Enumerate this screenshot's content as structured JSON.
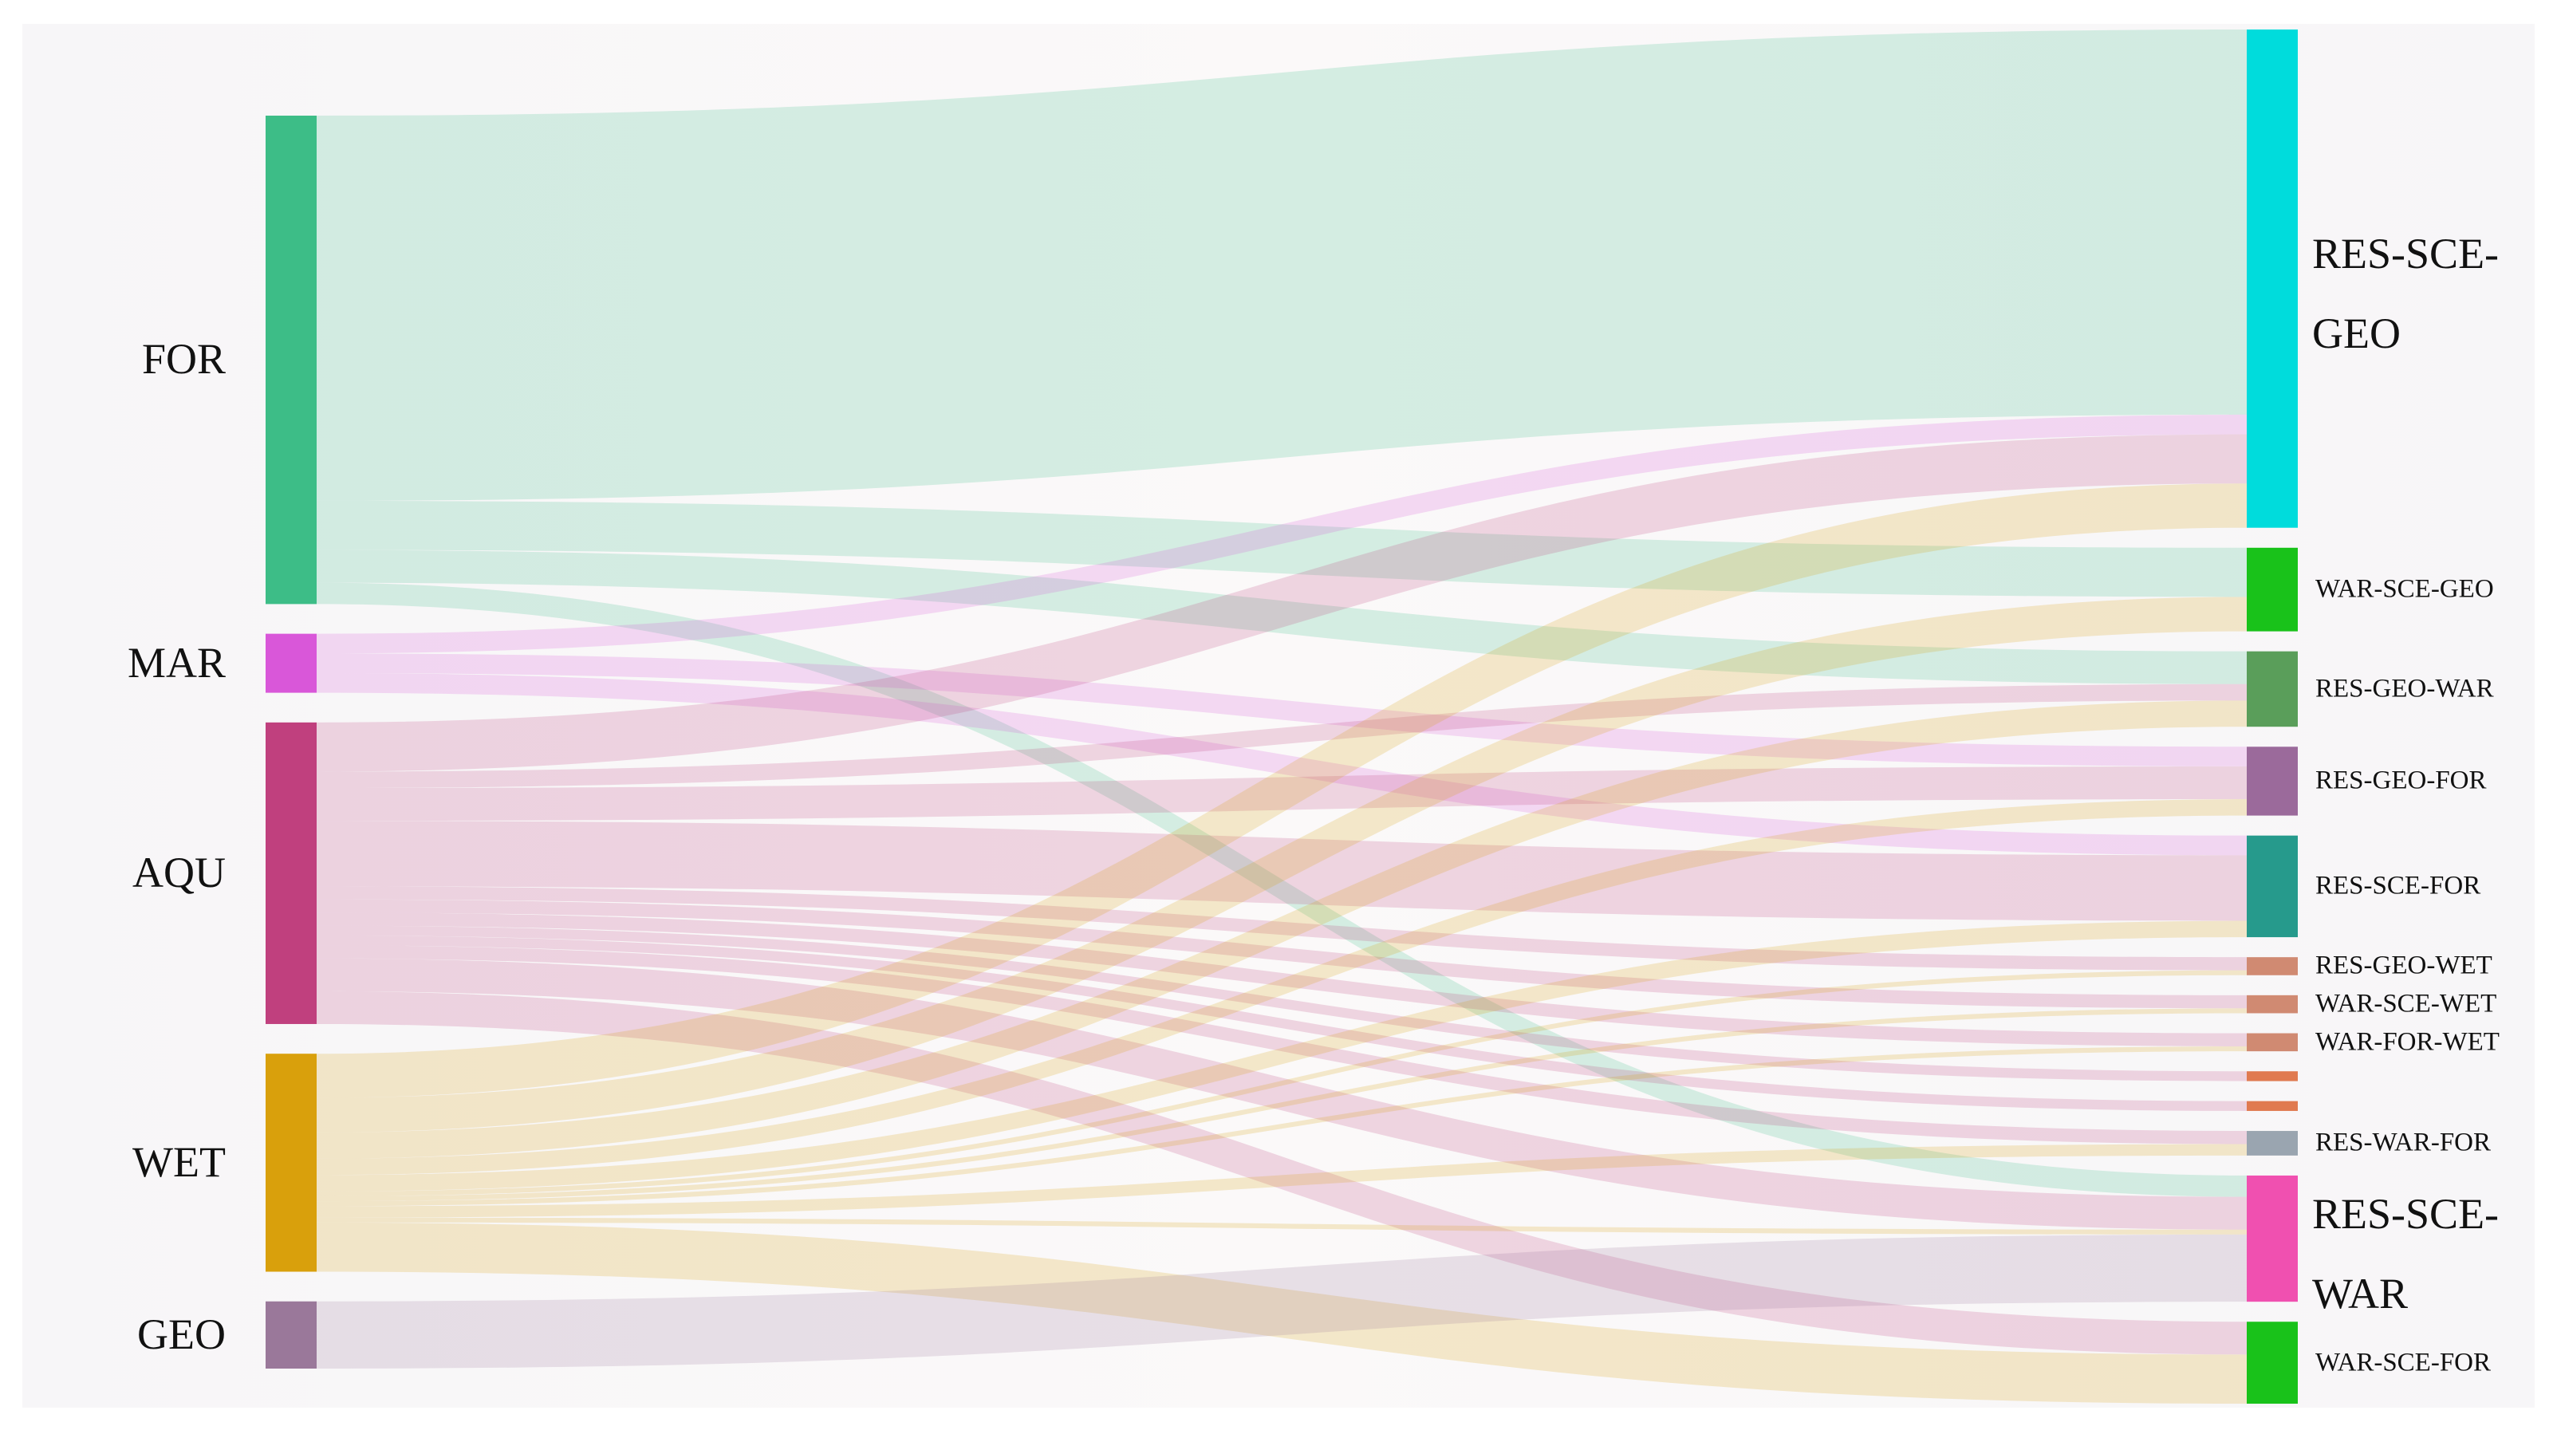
{
  "chart_data": {
    "type": "sankey",
    "sources": [
      {
        "name": "FOR",
        "color": "#3dbd87"
      },
      {
        "name": "MAR",
        "color": "#d957d9"
      },
      {
        "name": "AQU",
        "color": "#c0407e"
      },
      {
        "name": "WET",
        "color": "#d9a00c"
      },
      {
        "name": "GEO",
        "color": "#9a789a"
      }
    ],
    "targets": [
      {
        "name": "RES-SCE-GEO",
        "color": "#00dcdc"
      },
      {
        "name": "WAR-SCE-GEO",
        "color": "#19c21a"
      },
      {
        "name": "RES-GEO-WAR",
        "color": "#5a9e5a"
      },
      {
        "name": "RES-GEO-FOR",
        "color": "#9b6a9b"
      },
      {
        "name": "RES-SCE-FOR",
        "color": "#269a8c"
      },
      {
        "name": "RES-GEO-WET",
        "color": "#d08a72"
      },
      {
        "name": "WAR-SCE-WET",
        "color": "#d08a72"
      },
      {
        "name": "WAR-FOR-WET",
        "color": "#d08a72"
      },
      {
        "name": null,
        "color": "#e07a50"
      },
      {
        "name": null,
        "color": "#e07a50"
      },
      {
        "name": "RES-WAR-FOR",
        "color": "#9aa5b0"
      },
      {
        "name": "RES-SCE-WAR",
        "color": "#f050b0"
      },
      {
        "name": "WAR-SCE-FOR",
        "color": "#19c21a"
      }
    ],
    "flows": [
      [
        235,
        30,
        20,
        null,
        null,
        null,
        null,
        null,
        null,
        null,
        null,
        13,
        null
      ],
      [
        12,
        null,
        null,
        12,
        12,
        null,
        null,
        null,
        null,
        null,
        null,
        null,
        null
      ],
      [
        30,
        null,
        10,
        20,
        40,
        8,
        8,
        8,
        6,
        6,
        8,
        20,
        20
      ],
      [
        27,
        21,
        16,
        10,
        10,
        3,
        3,
        3,
        null,
        null,
        7,
        3,
        30
      ],
      [
        null,
        null,
        null,
        null,
        null,
        null,
        null,
        null,
        null,
        null,
        null,
        41,
        null
      ]
    ],
    "link_opacity": 0.2
  }
}
